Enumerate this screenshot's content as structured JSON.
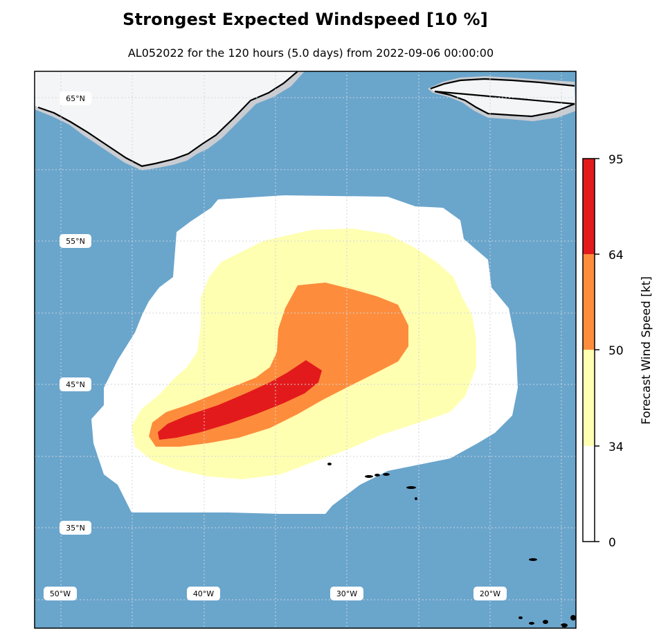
{
  "title": "Strongest Expected Windspeed [10 %]",
  "subtitle": "AL052022 for the 120 hours (5.0 days) from 2022-09-06 00:00:00",
  "map": {
    "ocean_color": "#6aa5cc",
    "land_color": "#f4f5f6",
    "lat_labels": [
      "65°N",
      "55°N",
      "45°N",
      "35°N"
    ],
    "lon_labels": [
      "50°W",
      "40°W",
      "30°W",
      "20°W"
    ]
  },
  "colorbar": {
    "label": "Forecast Wind Speed [kt]",
    "ticks": [
      "95",
      "64",
      "50",
      "34",
      "0"
    ],
    "bins": [
      {
        "from": 0,
        "to": 34,
        "color": "#ffffff"
      },
      {
        "from": 34,
        "to": 50,
        "color": "#ffffb2"
      },
      {
        "from": 50,
        "to": 64,
        "color": "#fd8d3c"
      },
      {
        "from": 64,
        "to": 95,
        "color": "#e31a1c"
      }
    ]
  }
}
